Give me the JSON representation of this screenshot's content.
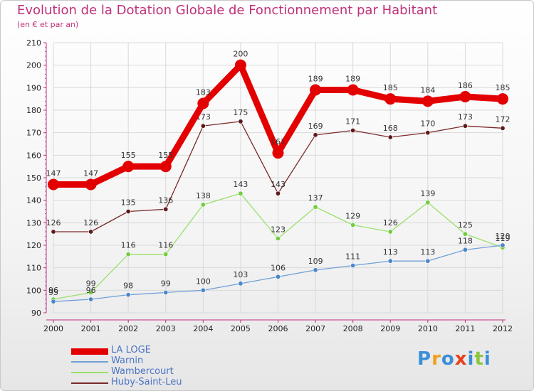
{
  "header": {
    "title": "Evolution de la Dotation Globale de Fonctionnement par Habitant",
    "subtitle": "(en € et par an)"
  },
  "logo": {
    "text": "Proxiti"
  },
  "chart_data": {
    "type": "line",
    "title": "Evolution de la Dotation Globale de Fonctionnement par Habitant",
    "subtitle": "(en € et par an)",
    "x": [
      "2000",
      "2001",
      "2002",
      "2003",
      "2004",
      "2005",
      "2006",
      "2007",
      "2008",
      "2009",
      "2010",
      "2011",
      "2012"
    ],
    "ylim": [
      90,
      210
    ],
    "yticks": [
      90,
      100,
      110,
      120,
      130,
      140,
      150,
      160,
      170,
      180,
      190,
      200,
      210
    ],
    "grid": true,
    "legend_position": "bottom-left",
    "series": [
      {
        "name": "LA LOGE",
        "color": "#e30000",
        "emphasis": true,
        "values": [
          147,
          147,
          155,
          155,
          183,
          200,
          161,
          189,
          189,
          185,
          184,
          186,
          185
        ],
        "labels": [
          "147",
          "147",
          "155",
          "155",
          "183",
          "200",
          "161",
          "189",
          "189",
          "185",
          "184",
          "186",
          "185"
        ]
      },
      {
        "name": "Warnin",
        "color": "#6fa0d8",
        "marker": "#4a86c8",
        "values": [
          95,
          96,
          98,
          99,
          100,
          103,
          106,
          109,
          111,
          113,
          113,
          118,
          120
        ],
        "labels": [
          "95",
          "96",
          "98",
          "99",
          "100",
          "103",
          "106",
          "109",
          "111",
          "113",
          "113",
          "118",
          "120"
        ]
      },
      {
        "name": "Wambercourt",
        "color": "#9be06a",
        "marker": "#72cc3c",
        "values": [
          96,
          99,
          116,
          116,
          138,
          143,
          123,
          137,
          129,
          126,
          139,
          125,
          119
        ],
        "labels": [
          "96",
          "99",
          "116",
          "116",
          "138",
          "143",
          "123",
          "137",
          "129",
          "126",
          "139",
          "125",
          "119"
        ]
      },
      {
        "name": "Huby-Saint-Leu",
        "color": "#7a2a2a",
        "marker": "#5e1a1a",
        "values": [
          126,
          126,
          135,
          136,
          173,
          175,
          143,
          169,
          171,
          168,
          170,
          173,
          172
        ],
        "labels": [
          "126",
          "126",
          "135",
          "136",
          "173",
          "175",
          "143",
          "169",
          "171",
          "168",
          "170",
          "173",
          "172"
        ]
      }
    ]
  }
}
